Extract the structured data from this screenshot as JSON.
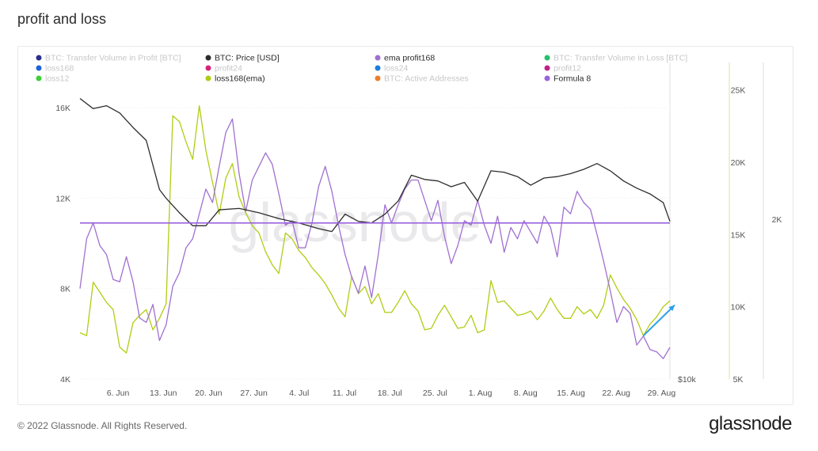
{
  "page": {
    "title": "profit and loss",
    "footer": "© 2022 Glassnode. All Rights Reserved.",
    "brand": "glassnode",
    "watermark": "glassnode"
  },
  "chart_data": {
    "type": "line",
    "title": "profit and loss",
    "legend": [
      {
        "name": "BTC: Transfer Volume in Profit [BTC]",
        "color": "#2b2f8f",
        "active": false
      },
      {
        "name": "BTC: Price [USD]",
        "color": "#2d2d2d",
        "active": true
      },
      {
        "name": "ema profit168",
        "color": "#a070d0",
        "active": true
      },
      {
        "name": "BTC: Transfer Volume in Loss [BTC]",
        "color": "#26c06a",
        "active": false
      },
      {
        "name": "loss168",
        "color": "#1f63d6",
        "active": false
      },
      {
        "name": "profit24",
        "color": "#d6247a",
        "active": false
      },
      {
        "name": "loss24",
        "color": "#1c7fdc",
        "active": false
      },
      {
        "name": "profit12",
        "color": "#c0208a",
        "active": false
      },
      {
        "name": "loss12",
        "color": "#3fcf39",
        "active": false
      },
      {
        "name": "loss168(ema)",
        "color": "#b2cc12",
        "active": true
      },
      {
        "name": "BTC: Active Addresses",
        "color": "#ee7d2e",
        "active": false
      },
      {
        "name": "Formula 8",
        "color": "#9a63de",
        "active": true
      }
    ],
    "x_tick_labels": [
      "6. Jun",
      "13. Jun",
      "20. Jun",
      "27. Jun",
      "4. Jul",
      "11. Jul",
      "18. Jul",
      "25. Jul",
      "1. Aug",
      "8. Aug",
      "15. Aug",
      "22. Aug",
      "29. Aug"
    ],
    "x_range_days": [
      0,
      89
    ],
    "x_tick_days": [
      7,
      14,
      21,
      28,
      35,
      42,
      49,
      56,
      63,
      70,
      77,
      84,
      91
    ],
    "axes": {
      "left": {
        "ticks": [
          "4K",
          "8K",
          "12K",
          "16K"
        ],
        "values": [
          4000,
          8000,
          12000,
          16000
        ],
        "range": [
          4000,
          16000
        ]
      },
      "price": {
        "ticks": [
          "25K",
          "20K",
          "15K",
          "10K",
          "5K"
        ],
        "values": [
          25000,
          20000,
          15000,
          10000,
          5000
        ],
        "range": [
          5000,
          27000
        ]
      },
      "extra": {
        "ticks": [
          "2K"
        ],
        "values": [
          2000
        ]
      },
      "bottom_tag": "$10k"
    },
    "series": [
      {
        "name": "BTC: Price [USD]",
        "axis": "price",
        "x": [
          0,
          2,
          4,
          6,
          8,
          10,
          12,
          13,
          14,
          15,
          17,
          19,
          21,
          24,
          27,
          30,
          33,
          36,
          38,
          40,
          42,
          44,
          46,
          48,
          50,
          52,
          54,
          56,
          58,
          60,
          62,
          64,
          66,
          68,
          70,
          72,
          74,
          76,
          78,
          80,
          82,
          84,
          86,
          88,
          89
        ],
        "y": [
          24400,
          23700,
          23900,
          23400,
          22400,
          21500,
          18100,
          17500,
          17000,
          16500,
          15600,
          15600,
          16700,
          16800,
          16500,
          16100,
          15800,
          15400,
          15200,
          16400,
          15900,
          15800,
          16400,
          17300,
          19100,
          18800,
          18700,
          18300,
          18600,
          17300,
          19400,
          19300,
          19000,
          18400,
          18900,
          19000,
          19200,
          19500,
          19900,
          19400,
          18700,
          18200,
          17800,
          17200,
          15900
        ]
      },
      {
        "name": "loss168(ema)",
        "axis": "price",
        "x": [
          0,
          1,
          2,
          3,
          4,
          5,
          6,
          7,
          8,
          9,
          10,
          11,
          12,
          13,
          14,
          15,
          16,
          17,
          18,
          19,
          20,
          21,
          22,
          23,
          24,
          25,
          26,
          27,
          28,
          29,
          30,
          31,
          32,
          33,
          34,
          35,
          36,
          37,
          38,
          39,
          40,
          41,
          42,
          43,
          44,
          45,
          46,
          47,
          48,
          49,
          50,
          51,
          52,
          53,
          54,
          55,
          56,
          57,
          58,
          59,
          60,
          61,
          62,
          63,
          64,
          65,
          66,
          67,
          68,
          69,
          70,
          71,
          72,
          73,
          74,
          75,
          76,
          77,
          78,
          79,
          80,
          81,
          82,
          83,
          84,
          85,
          86,
          87,
          88,
          89
        ],
        "y": [
          8200,
          8000,
          11700,
          11000,
          10300,
          9800,
          7200,
          6800,
          8900,
          9400,
          9800,
          8400,
          9200,
          10200,
          23200,
          22800,
          21400,
          20200,
          23900,
          20800,
          18600,
          16400,
          18900,
          19900,
          17600,
          16500,
          15600,
          15100,
          13800,
          12900,
          12300,
          15100,
          14700,
          13900,
          13400,
          12700,
          12200,
          11600,
          10800,
          9900,
          9300,
          12100,
          10900,
          11400,
          10200,
          10900,
          9600,
          9600,
          10300,
          11100,
          10200,
          9700,
          8400,
          8500,
          9400,
          10100,
          9300,
          8500,
          8600,
          9400,
          8200,
          8400,
          11800,
          10300,
          10400,
          9900,
          9400,
          9500,
          9700,
          9100,
          9700,
          10600,
          9800,
          9200,
          9200,
          10000,
          9500,
          9800,
          9200,
          10100,
          12200,
          11300,
          10500,
          9900,
          9100,
          8000,
          8800,
          9300,
          10000,
          10400
        ]
      },
      {
        "name": "ema profit168",
        "axis": "left",
        "x": [
          0,
          1,
          2,
          3,
          4,
          5,
          6,
          7,
          8,
          9,
          10,
          11,
          12,
          13,
          14,
          15,
          16,
          17,
          18,
          19,
          20,
          21,
          22,
          23,
          24,
          25,
          26,
          27,
          28,
          29,
          30,
          31,
          32,
          33,
          34,
          35,
          36,
          37,
          38,
          39,
          40,
          41,
          42,
          43,
          44,
          45,
          46,
          47,
          48,
          49,
          50,
          51,
          52,
          53,
          54,
          55,
          56,
          57,
          58,
          59,
          60,
          61,
          62,
          63,
          64,
          65,
          66,
          67,
          68,
          69,
          70,
          71,
          72,
          73,
          74,
          75,
          76,
          77,
          78,
          79,
          80,
          81,
          82,
          83,
          84,
          85,
          86,
          87,
          88,
          89
        ],
        "y": [
          8000,
          10200,
          10900,
          9900,
          9500,
          8400,
          8300,
          9400,
          8300,
          6700,
          6500,
          7300,
          5700,
          6400,
          8100,
          8700,
          9800,
          10200,
          11300,
          12400,
          11800,
          13400,
          14900,
          15500,
          13100,
          11400,
          12800,
          13400,
          14000,
          13500,
          12200,
          10800,
          11000,
          9800,
          9800,
          10900,
          12500,
          13400,
          12300,
          10800,
          9500,
          8500,
          7800,
          9000,
          7600,
          9500,
          11700,
          10900,
          11700,
          12400,
          12800,
          12800,
          11900,
          11000,
          11900,
          10300,
          9100,
          9900,
          11000,
          10800,
          11900,
          10800,
          10000,
          11200,
          9600,
          10700,
          10200,
          11000,
          10500,
          10000,
          11200,
          10700,
          9400,
          11600,
          11300,
          12300,
          11800,
          11500,
          10400,
          9200,
          7900,
          6500,
          7200,
          6900,
          5500,
          5900,
          5300,
          5200,
          4900,
          5400
        ]
      },
      {
        "name": "Formula 8",
        "axis": "left",
        "x": [
          0,
          89
        ],
        "y": [
          10900,
          10900
        ]
      }
    ],
    "annotation_arrow": {
      "from_x": 85,
      "from_y_price": 8000,
      "to_x": 89,
      "to_y_price": 10000,
      "color": "#2e9fe8"
    }
  }
}
